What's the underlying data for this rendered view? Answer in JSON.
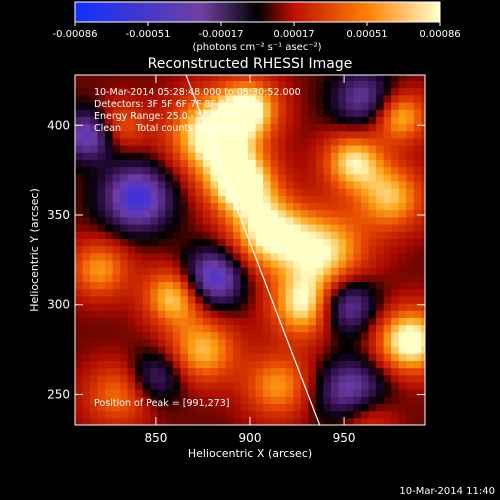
{
  "chart_data": {
    "type": "heatmap",
    "title": "Reconstructed RHESSI Image",
    "xlabel": "Heliocentric X (arcsec)",
    "ylabel": "Heliocentric Y (arcsec)",
    "xlim": [
      807,
      993
    ],
    "ylim": [
      233,
      428
    ],
    "x_ticks": [
      850,
      900,
      950
    ],
    "y_ticks": [
      250,
      300,
      350,
      400
    ],
    "colorbar": {
      "ticks": [
        "-0.00086",
        "-0.00051",
        "-0.00017",
        "0.00017",
        "0.00051",
        "0.00086"
      ],
      "range": [
        -0.00086,
        0.00086
      ],
      "units": "(photons cm⁻² s⁻¹ asec⁻²)"
    },
    "annotations": [
      "10-Mar-2014 05:28:48.000 to 05:30:52.000",
      "Detectors: 3F 5F 6F 7F 8F 9F, Att 0",
      "Energy Range: 25.0 - 50.0 keV",
      "Clean     Total counts: 4.65E+03"
    ],
    "peak_label": "Position of Peak = [991,273]",
    "peak_position": [
      991,
      273
    ],
    "limb_line": [
      [
        866,
        428
      ],
      [
        937,
        233
      ]
    ],
    "plot_timestamp": "10-Mar-2014 11:40",
    "blobs": [
      {
        "x": 880,
        "y": 395,
        "a": 1.0,
        "r": 22
      },
      {
        "x": 895,
        "y": 368,
        "a": 1.0,
        "r": 18
      },
      {
        "x": 910,
        "y": 340,
        "a": 0.9,
        "r": 20
      },
      {
        "x": 940,
        "y": 330,
        "a": 0.8,
        "r": 22
      },
      {
        "x": 930,
        "y": 300,
        "a": 0.9,
        "r": 18
      },
      {
        "x": 860,
        "y": 305,
        "a": 0.8,
        "r": 16
      },
      {
        "x": 875,
        "y": 275,
        "a": 0.7,
        "r": 18
      },
      {
        "x": 955,
        "y": 380,
        "a": 0.8,
        "r": 16
      },
      {
        "x": 975,
        "y": 360,
        "a": 0.7,
        "r": 18
      },
      {
        "x": 980,
        "y": 405,
        "a": 0.7,
        "r": 14
      },
      {
        "x": 985,
        "y": 280,
        "a": 1.0,
        "r": 18
      },
      {
        "x": 960,
        "y": 240,
        "a": 0.6,
        "r": 16
      },
      {
        "x": 830,
        "y": 400,
        "a": 0.5,
        "r": 14
      },
      {
        "x": 820,
        "y": 320,
        "a": 0.6,
        "r": 16
      },
      {
        "x": 830,
        "y": 250,
        "a": 0.5,
        "r": 18
      },
      {
        "x": 915,
        "y": 255,
        "a": 0.6,
        "r": 18
      },
      {
        "x": 900,
        "y": 410,
        "a": 0.8,
        "r": 16
      },
      {
        "x": 840,
        "y": 360,
        "a": -0.9,
        "r": 18
      },
      {
        "x": 815,
        "y": 395,
        "a": -0.8,
        "r": 14
      },
      {
        "x": 880,
        "y": 315,
        "a": -0.9,
        "r": 16
      },
      {
        "x": 950,
        "y": 300,
        "a": -0.8,
        "r": 16
      },
      {
        "x": 955,
        "y": 250,
        "a": -0.9,
        "r": 18
      },
      {
        "x": 960,
        "y": 415,
        "a": -0.6,
        "r": 16
      },
      {
        "x": 850,
        "y": 260,
        "a": -0.5,
        "r": 14
      }
    ]
  }
}
